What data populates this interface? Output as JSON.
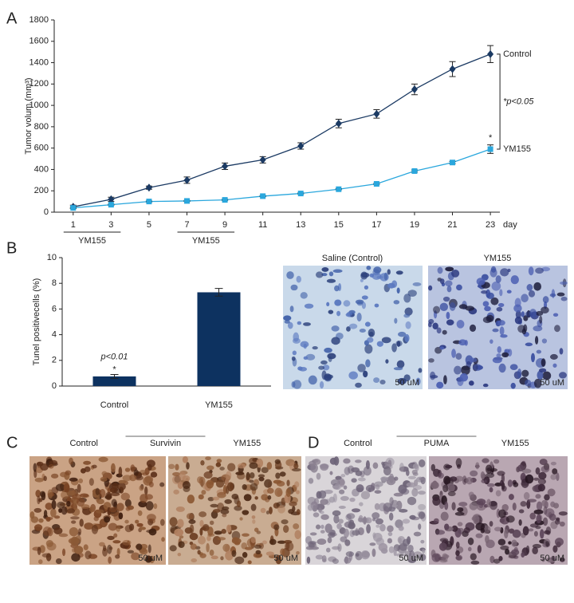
{
  "panel_labels": [
    "A",
    "B",
    "C",
    "D"
  ],
  "chart_data": [
    {
      "type": "line",
      "ylabel": "Tumor volum (mm³)",
      "xlabel": "day",
      "x": [
        1,
        3,
        5,
        7,
        9,
        11,
        13,
        15,
        17,
        19,
        21,
        23
      ],
      "xlim": [
        0,
        23.5
      ],
      "xticks": [
        1,
        3,
        5,
        7,
        9,
        11,
        13,
        15,
        17,
        19,
        21,
        23
      ],
      "ylim": [
        0,
        1800
      ],
      "yticks": [
        0,
        200,
        400,
        600,
        800,
        1000,
        1200,
        1400,
        1600,
        1800
      ],
      "series": [
        {
          "name": "Control",
          "color": "#1b3a63",
          "marker": "diamond",
          "values": [
            50,
            120,
            230,
            300,
            430,
            490,
            620,
            830,
            920,
            1150,
            1340,
            1480
          ],
          "errors": [
            15,
            20,
            15,
            30,
            30,
            30,
            30,
            40,
            40,
            50,
            70,
            80
          ]
        },
        {
          "name": "YM155",
          "color": "#2aa7dd",
          "marker": "square",
          "values": [
            40,
            70,
            100,
            105,
            115,
            150,
            175,
            215,
            265,
            385,
            465,
            590
          ],
          "errors": [
            5,
            5,
            5,
            5,
            5,
            5,
            5,
            5,
            5,
            10,
            10,
            40
          ]
        }
      ],
      "treatments": [
        {
          "label": "YM155",
          "start": 1,
          "end": 3
        },
        {
          "label": "YM155",
          "start": 7,
          "end": 9
        }
      ],
      "significance_label": "*p<0.05",
      "point_marker": "*"
    },
    {
      "type": "bar",
      "ylabel": "Tunel positivecells (%)",
      "categories": [
        "Control",
        "YM155"
      ],
      "values": [
        0.75,
        7.3
      ],
      "errors": [
        0.15,
        0.3
      ],
      "color": "#0d3260",
      "ylim": [
        0,
        10
      ],
      "yticks": [
        0,
        2,
        4,
        6,
        8,
        10
      ],
      "annotation": "p<0.01",
      "point_marker": "*"
    }
  ],
  "images": {
    "b": {
      "titles": [
        "Saline (Control)",
        "YM155"
      ],
      "scale": "50 uM"
    },
    "c": {
      "labels": [
        "Control",
        "Survivin",
        "YM155"
      ],
      "scale": "50 uM"
    },
    "d": {
      "labels": [
        "Control",
        "PUMA",
        "YM155"
      ],
      "scale": "50 uM"
    }
  }
}
